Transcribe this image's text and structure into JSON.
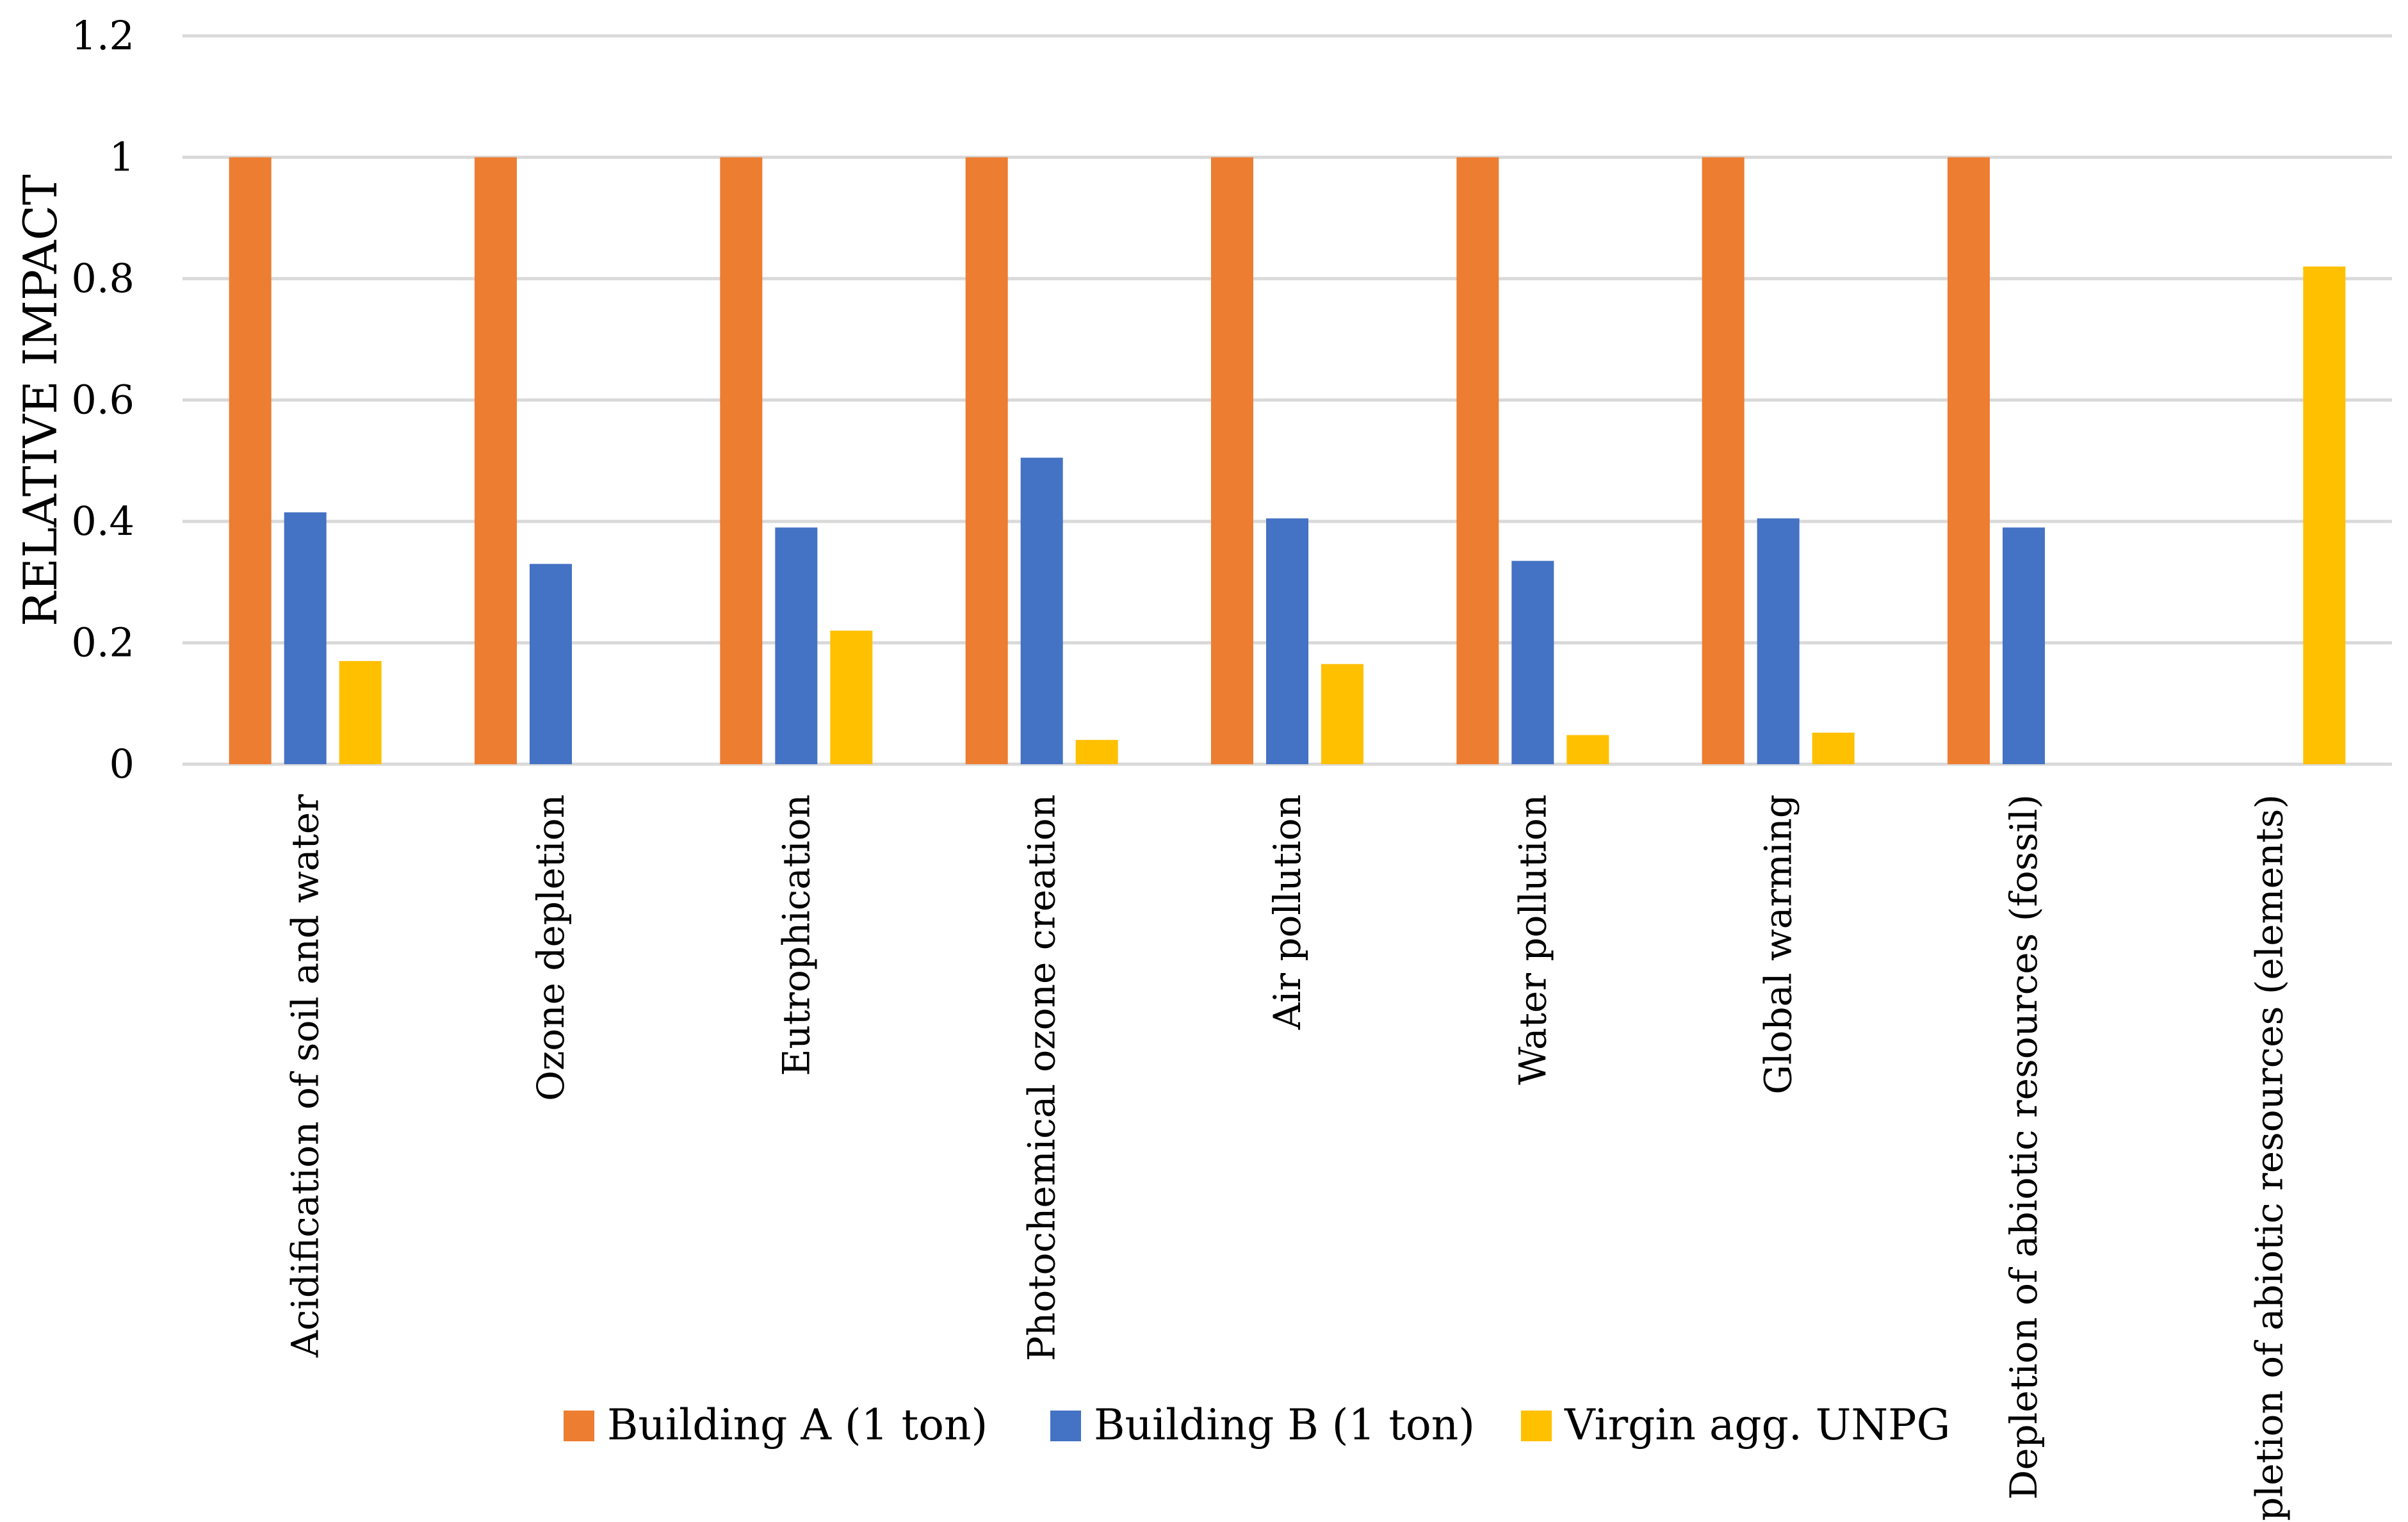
{
  "chart_data": {
    "type": "bar",
    "title": "",
    "xlabel": "",
    "ylabel": "RELATIVE IMPACT",
    "ylim": [
      0,
      1.2
    ],
    "yticks": [
      "0",
      "0.2",
      "0.4",
      "0.6",
      "0.8",
      "1",
      "1.2"
    ],
    "grid": true,
    "legend_position": "bottom",
    "categories": [
      "Acidification of soil and water",
      "Ozone depletion",
      "Eutrophication",
      "Photochemical ozone creation",
      "Air pollution",
      "Water pollution",
      "Global warming",
      "Depletion of abiotic resources (fossil)",
      "Depletion of abiotic resources (elements)"
    ],
    "series": [
      {
        "name": "Building A (1 ton)",
        "color": "#ED7D31",
        "values": [
          1,
          1,
          1,
          1,
          1,
          1,
          1,
          1,
          0
        ]
      },
      {
        "name": "Building B (1 ton)",
        "color": "#4472C4",
        "values": [
          0.415,
          0.33,
          0.39,
          0.505,
          0.405,
          0.335,
          0.405,
          0.39,
          0
        ]
      },
      {
        "name": "Virgin agg. UNPG",
        "color": "#FFC000",
        "values": [
          0.17,
          0,
          0.22,
          0.04,
          0.165,
          0.048,
          0.052,
          0,
          0.82
        ]
      }
    ]
  }
}
